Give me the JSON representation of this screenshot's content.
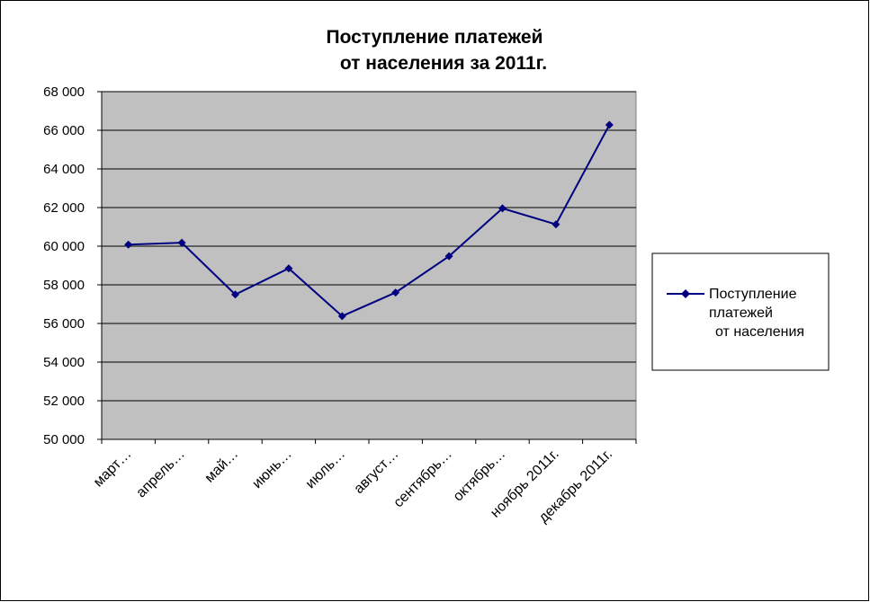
{
  "chart_data": {
    "type": "line",
    "title_lines": [
      "Поступление платежей",
      "от населения за 2011г."
    ],
    "categories": [
      "март…",
      "апрель…",
      "май…",
      "июнь…",
      "июль…",
      "август…",
      "сентябрь…",
      "октябрь…",
      "ноябрь 2011г.",
      "декабрь 2011г."
    ],
    "series": [
      {
        "name_lines": [
          "Поступление",
          "платежей",
          "от населения"
        ],
        "color": "#000080",
        "marker": "diamond",
        "values": [
          60080,
          60180,
          57500,
          58850,
          56380,
          57600,
          59480,
          61960,
          61130,
          66280
        ]
      }
    ],
    "ylim": [
      50000,
      68000
    ],
    "yticks": [
      50000,
      52000,
      54000,
      56000,
      58000,
      60000,
      62000,
      64000,
      66000,
      68000
    ],
    "ytick_labels": [
      "50 000",
      "52 000",
      "54 000",
      "56 000",
      "58 000",
      "60 000",
      "62 000",
      "64 000",
      "66 000",
      "68 000"
    ],
    "plot_background": "#c0c0c0",
    "grid": true,
    "legend_position": "right"
  }
}
